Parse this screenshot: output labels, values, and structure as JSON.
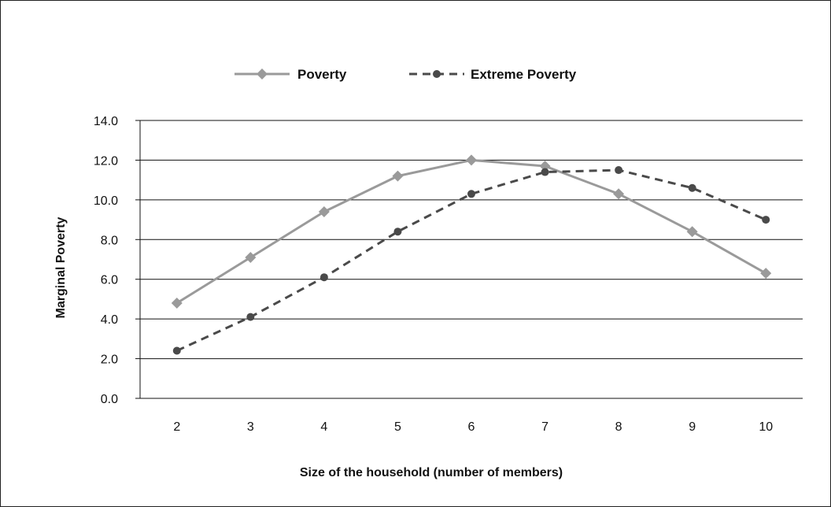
{
  "chart_data": {
    "type": "line",
    "x": [
      2,
      3,
      4,
      5,
      6,
      7,
      8,
      9,
      10
    ],
    "x_tick_labels": [
      "2",
      "3",
      "4",
      "5",
      "6",
      "7",
      "8",
      "9",
      "10"
    ],
    "y_tick_labels": [
      "0.0",
      "2.0",
      "4.0",
      "6.0",
      "8.0",
      "10.0",
      "12.0",
      "14.0"
    ],
    "xlabel": "Size of the household (number of members)",
    "ylabel": "Marginal Poverty",
    "ylim": [
      0,
      14
    ],
    "grid": "horizontal",
    "legend_position": "top",
    "series": [
      {
        "name": "Poverty",
        "values": [
          4.8,
          7.1,
          9.4,
          11.2,
          12.0,
          11.7,
          10.3,
          8.4,
          6.3
        ],
        "color": "#9a9a9a",
        "line_style": "solid",
        "marker": "diamond"
      },
      {
        "name": "Extreme Poverty",
        "values": [
          2.4,
          4.1,
          6.1,
          8.4,
          10.3,
          11.4,
          11.5,
          10.6,
          9.0
        ],
        "color": "#4a4a4a",
        "line_style": "dashed",
        "marker": "circle"
      }
    ]
  }
}
